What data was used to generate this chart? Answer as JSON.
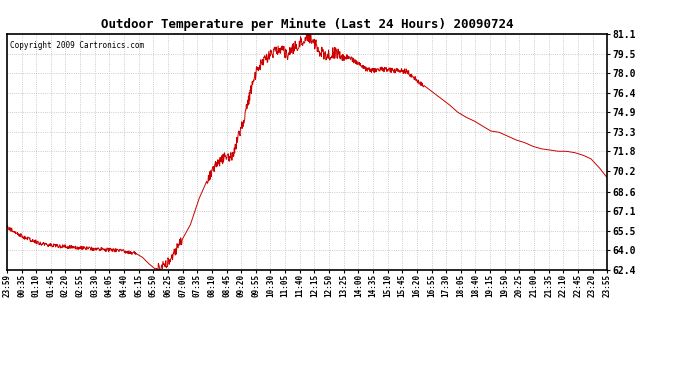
{
  "title": "Outdoor Temperature per Minute (Last 24 Hours) 20090724",
  "copyright_text": "Copyright 2009 Cartronics.com",
  "line_color": "#cc0000",
  "background_color": "#ffffff",
  "grid_color": "#bbbbbb",
  "yticks": [
    62.4,
    64.0,
    65.5,
    67.1,
    68.6,
    70.2,
    71.8,
    73.3,
    74.9,
    76.4,
    78.0,
    79.5,
    81.1
  ],
  "ylim": [
    62.4,
    81.1
  ],
  "xtick_labels": [
    "23:59",
    "00:35",
    "01:10",
    "01:45",
    "02:20",
    "02:55",
    "03:30",
    "04:05",
    "04:40",
    "05:15",
    "05:50",
    "06:25",
    "07:00",
    "07:35",
    "08:10",
    "08:45",
    "09:20",
    "09:55",
    "10:30",
    "11:05",
    "11:40",
    "12:15",
    "12:50",
    "13:25",
    "14:00",
    "14:35",
    "15:10",
    "15:45",
    "16:20",
    "16:55",
    "17:30",
    "18:05",
    "18:40",
    "19:15",
    "19:50",
    "20:25",
    "21:00",
    "21:35",
    "22:10",
    "22:45",
    "23:20",
    "23:55"
  ],
  "key_times": [
    0,
    40,
    80,
    120,
    160,
    200,
    240,
    280,
    310,
    325,
    340,
    355,
    370,
    390,
    415,
    440,
    460,
    480,
    500,
    520,
    540,
    555,
    570,
    585,
    600,
    615,
    630,
    645,
    660,
    675,
    690,
    705,
    720,
    735,
    750,
    760,
    770,
    780,
    790,
    800,
    820,
    840,
    860,
    880,
    900,
    920,
    940,
    960,
    980,
    1000,
    1020,
    1040,
    1060,
    1080,
    1100,
    1120,
    1140,
    1160,
    1180,
    1200,
    1220,
    1240,
    1260,
    1280,
    1300,
    1320,
    1340,
    1360,
    1380,
    1400,
    1420,
    1439
  ],
  "key_temps": [
    65.8,
    65.0,
    64.5,
    64.3,
    64.2,
    64.1,
    64.0,
    63.9,
    63.7,
    63.4,
    62.9,
    62.5,
    62.6,
    63.2,
    64.5,
    66.0,
    68.0,
    69.5,
    70.5,
    71.2,
    71.3,
    72.8,
    74.5,
    76.5,
    78.2,
    78.8,
    79.3,
    79.6,
    79.8,
    79.5,
    80.0,
    80.5,
    81.0,
    80.5,
    79.8,
    79.5,
    79.3,
    79.6,
    79.5,
    79.4,
    79.2,
    78.8,
    78.3,
    78.2,
    78.3,
    78.2,
    78.2,
    78.1,
    77.5,
    77.0,
    76.5,
    76.0,
    75.5,
    74.9,
    74.5,
    74.2,
    73.8,
    73.4,
    73.3,
    73.0,
    72.7,
    72.5,
    72.2,
    72.0,
    71.9,
    71.8,
    71.8,
    71.7,
    71.5,
    71.2,
    70.5,
    69.7
  ],
  "noise_seed": 42
}
